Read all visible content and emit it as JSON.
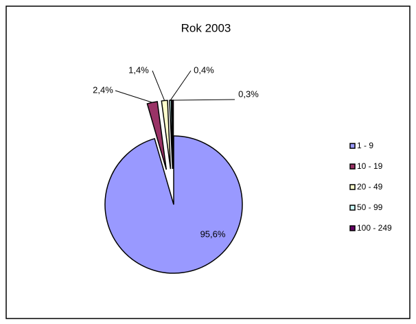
{
  "chart_data": {
    "type": "pie",
    "title": "Rok 2003",
    "categories": [
      "1 - 9",
      "10 - 19",
      "20 - 49",
      "50 - 99",
      "100 - 249"
    ],
    "values": [
      95.6,
      2.4,
      1.4,
      0.4,
      0.3
    ],
    "value_labels": [
      "95,6%",
      "2,4%",
      "1,4%",
      "0,4%",
      "0,3%"
    ],
    "colors": [
      "#9999ff",
      "#993366",
      "#ffffcc",
      "#ccffff",
      "#660066"
    ],
    "legend": "right"
  }
}
